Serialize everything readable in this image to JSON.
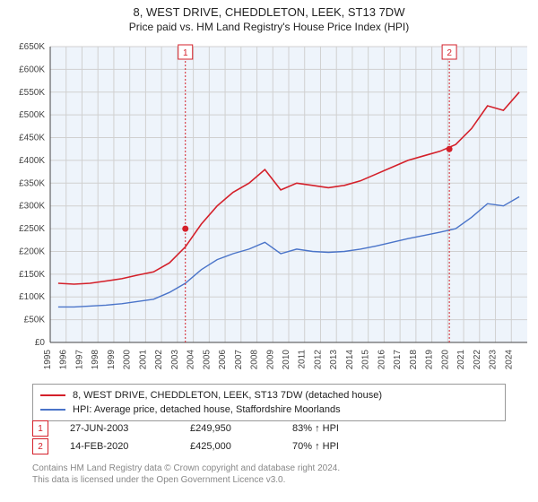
{
  "title_main": "8, WEST DRIVE, CHEDDLETON, LEEK, ST13 7DW",
  "title_sub": "Price paid vs. HM Land Registry's House Price Index (HPI)",
  "chart": {
    "type": "line",
    "plot_bg": "#eef4fb",
    "grid_color": "#d0d0d0",
    "axis_color": "#444444",
    "tick_fontsize": 10,
    "tick_color": "#444444",
    "x_years": [
      1995,
      1996,
      1997,
      1998,
      1999,
      2000,
      2001,
      2002,
      2003,
      2004,
      2005,
      2006,
      2007,
      2008,
      2009,
      2010,
      2011,
      2012,
      2013,
      2014,
      2015,
      2016,
      2017,
      2018,
      2019,
      2020,
      2021,
      2022,
      2023,
      2024
    ],
    "y_min": 0,
    "y_max": 650000,
    "y_step": 50000,
    "y_prefix": "£",
    "y_suffix": "K",
    "series": [
      {
        "name": "8, WEST DRIVE, CHEDDLETON, LEEK, ST13 7DW (detached house)",
        "color": "#d4202a",
        "width": 1.6,
        "values": [
          130,
          128,
          130,
          135,
          140,
          148,
          155,
          175,
          210,
          260,
          300,
          330,
          350,
          380,
          335,
          350,
          345,
          340,
          345,
          355,
          370,
          385,
          400,
          410,
          420,
          435,
          470,
          520,
          510,
          550
        ]
      },
      {
        "name": "HPI: Average price, detached house, Staffordshire Moorlands",
        "color": "#4a74c9",
        "width": 1.4,
        "values": [
          78,
          78,
          80,
          82,
          85,
          90,
          95,
          110,
          130,
          160,
          182,
          195,
          205,
          220,
          195,
          205,
          200,
          198,
          200,
          205,
          212,
          220,
          228,
          235,
          242,
          250,
          275,
          305,
          300,
          320
        ]
      }
    ],
    "markers": [
      {
        "id": "1",
        "x_year": 2003.5,
        "y_value": 249.95,
        "date": "27-JUN-2003",
        "price": "£249,950",
        "pct_vs_hpi": "83% ↑ HPI",
        "color": "#d4202a"
      },
      {
        "id": "2",
        "x_year": 2020.1,
        "y_value": 425,
        "date": "14-FEB-2020",
        "price": "£425,000",
        "pct_vs_hpi": "70% ↑ HPI",
        "color": "#d4202a"
      }
    ]
  },
  "footnote_l1": "Contains HM Land Registry data © Crown copyright and database right 2024.",
  "footnote_l2": "This data is licensed under the Open Government Licence v3.0."
}
